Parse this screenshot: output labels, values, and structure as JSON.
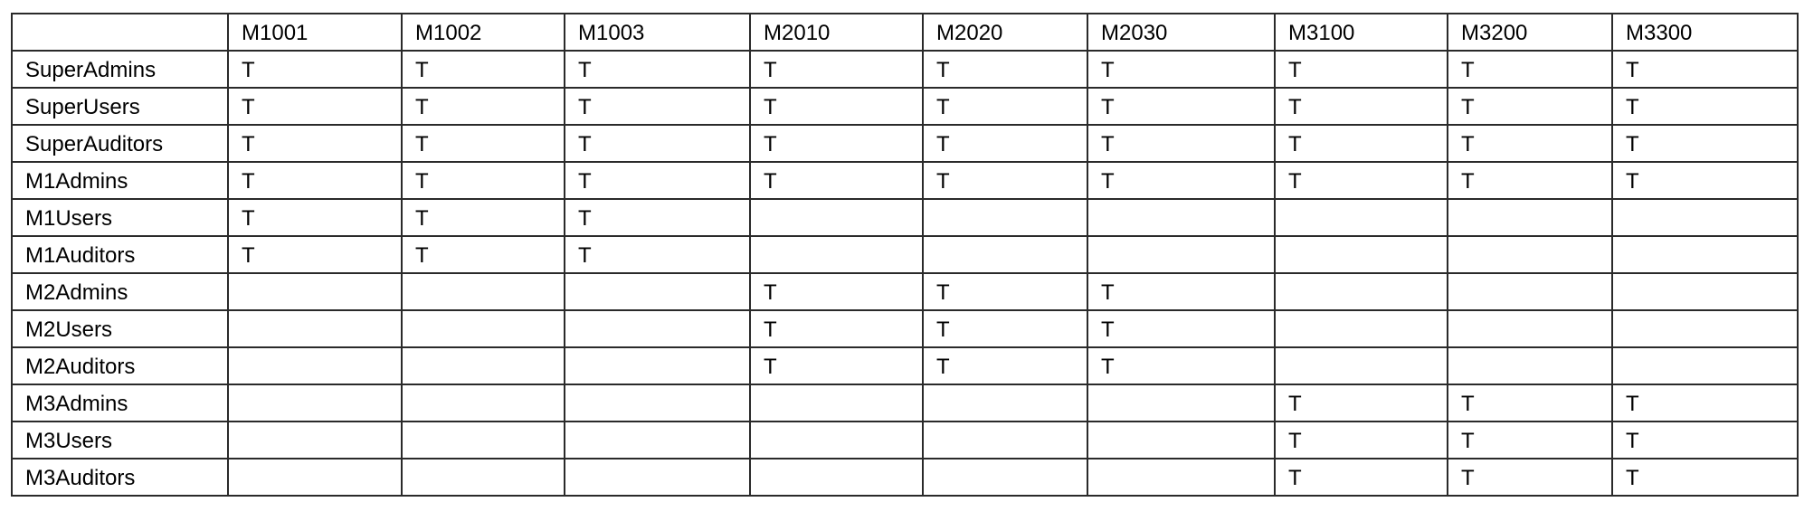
{
  "table": {
    "columns": [
      "",
      "M1001",
      "M1002",
      "M1003",
      "M2010",
      "M2020",
      "M2030",
      "M3100",
      "M3200",
      "M3300"
    ],
    "rows": [
      {
        "label": "SuperAdmins",
        "cells": [
          "T",
          "T",
          "T",
          "T",
          "T",
          "T",
          "T",
          "T",
          "T"
        ]
      },
      {
        "label": "SuperUsers",
        "cells": [
          "T",
          "T",
          "T",
          "T",
          "T",
          "T",
          "T",
          "T",
          "T"
        ]
      },
      {
        "label": "SuperAuditors",
        "cells": [
          "T",
          "T",
          "T",
          "T",
          "T",
          "T",
          "T",
          "T",
          "T"
        ]
      },
      {
        "label": "M1Admins",
        "cells": [
          "T",
          "T",
          "T",
          "T",
          "T",
          "T",
          "T",
          "T",
          "T"
        ]
      },
      {
        "label": "M1Users",
        "cells": [
          "T",
          "T",
          "T",
          "",
          "",
          "",
          "",
          "",
          ""
        ]
      },
      {
        "label": "M1Auditors",
        "cells": [
          "T",
          "T",
          "T",
          "",
          "",
          "",
          "",
          "",
          ""
        ]
      },
      {
        "label": "M2Admins",
        "cells": [
          "",
          "",
          "",
          "T",
          "T",
          "T",
          "",
          "",
          ""
        ]
      },
      {
        "label": "M2Users",
        "cells": [
          "",
          "",
          "",
          "T",
          "T",
          "T",
          "",
          "",
          ""
        ]
      },
      {
        "label": "M2Auditors",
        "cells": [
          "",
          "",
          "",
          "T",
          "T",
          "T",
          "",
          "",
          ""
        ]
      },
      {
        "label": "M3Admins",
        "cells": [
          "",
          "",
          "",
          "",
          "",
          "",
          "T",
          "T",
          "T"
        ]
      },
      {
        "label": "M3Users",
        "cells": [
          "",
          "",
          "",
          "",
          "",
          "",
          "T",
          "T",
          "T"
        ]
      },
      {
        "label": "M3Auditors",
        "cells": [
          "",
          "",
          "",
          "",
          "",
          "",
          "T",
          "T",
          "T"
        ]
      }
    ]
  }
}
